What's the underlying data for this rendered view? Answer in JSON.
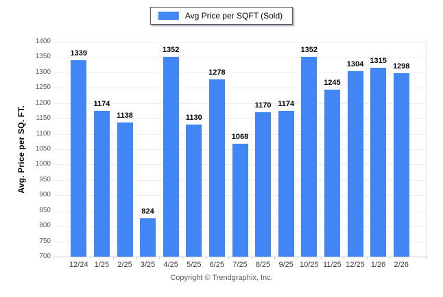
{
  "legend": {
    "label": "Avg Price per SQFT (Sold)"
  },
  "y_axis_title": "Avg. Price per SQ. FT.",
  "footer": {
    "copyright": "Copyright © Trendgraphix, Inc."
  },
  "colors": {
    "bar": "#4285f4",
    "gridline": "#ededed",
    "axis_line": "#c9c9c9",
    "tick_text": "#595959",
    "x_tick_text": "#3c3c3c",
    "value_text": "#000000",
    "legend_border": "#3e4a5e"
  },
  "chart_data": {
    "type": "bar",
    "title": "Avg Price per SQFT (Sold)",
    "categories": [
      "12/24",
      "1/25",
      "2/25",
      "3/25",
      "4/25",
      "5/25",
      "6/25",
      "7/25",
      "8/25",
      "9/25",
      "10/25",
      "11/25",
      "12/25",
      "1/26",
      "2/26"
    ],
    "values": [
      1339,
      1174,
      1138,
      824,
      1352,
      1130,
      1278,
      1068,
      1170,
      1174,
      1352,
      1245,
      1304,
      1315,
      1298
    ],
    "xlabel": "",
    "ylabel": "Avg. Price per SQ. FT.",
    "ylim": [
      700,
      1400
    ],
    "ytick_step": 50,
    "grid": true,
    "legend_position": "top-center",
    "bar_color": "#4285f4"
  }
}
